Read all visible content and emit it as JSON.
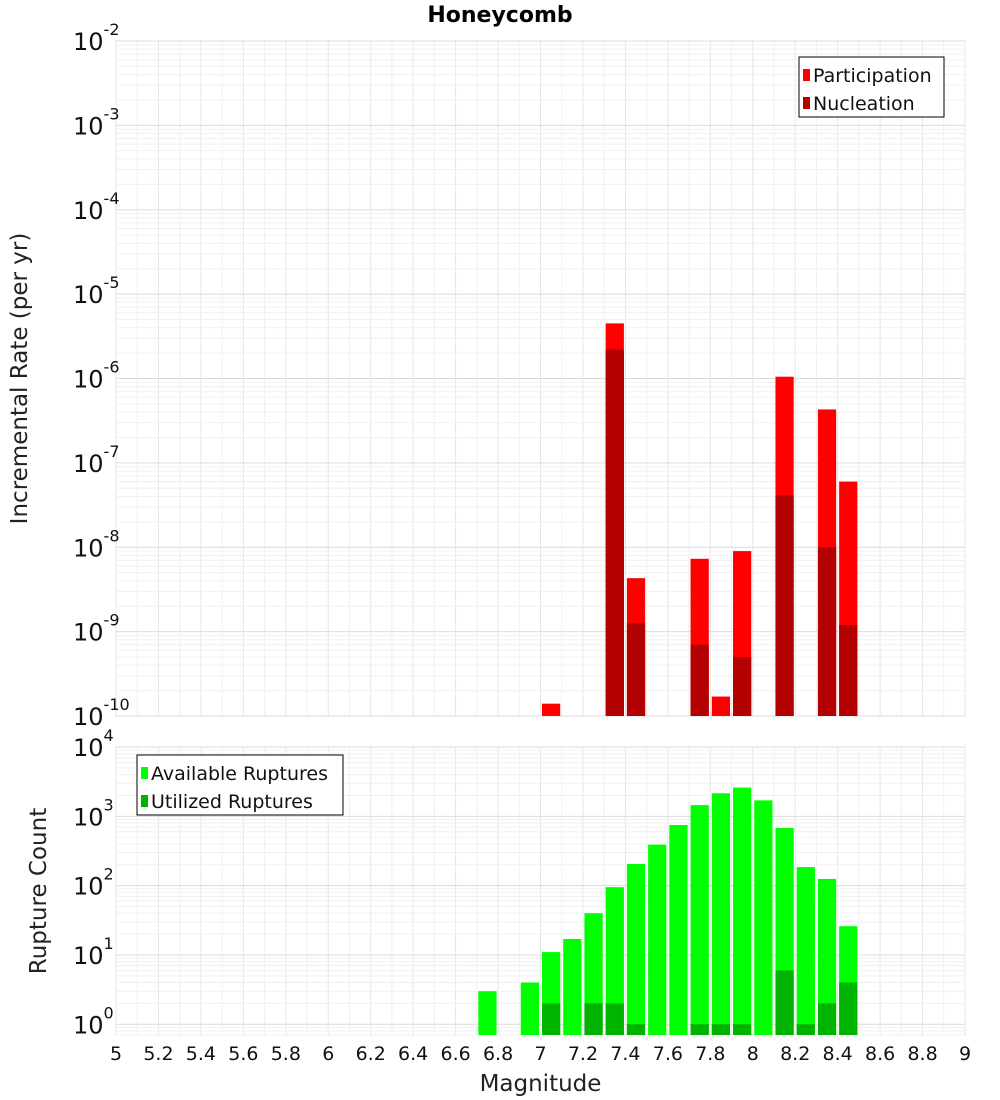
{
  "chart_data": [
    {
      "type": "bar",
      "title": "Honeycomb",
      "ylabel": "Incremental Rate (per yr)",
      "yscale": "log",
      "ylim": [
        1e-10,
        0.01
      ],
      "yticks_exp": [
        -10,
        -9,
        -8,
        -7,
        -6,
        -5,
        -4,
        -3,
        -2
      ],
      "grid": true,
      "legend_position": "top-right",
      "series": [
        {
          "name": "Participation",
          "color": "#ff0000",
          "points": [
            [
              7.05,
              1.4e-10
            ],
            [
              7.35,
              4.5e-06
            ],
            [
              7.45,
              4.3e-09
            ],
            [
              7.75,
              7.3e-09
            ],
            [
              7.85,
              1.7e-10
            ],
            [
              7.95,
              9e-09
            ],
            [
              8.15,
              1.05e-06
            ],
            [
              8.35,
              4.3e-07
            ],
            [
              8.45,
              6e-08
            ]
          ]
        },
        {
          "name": "Nucleation",
          "color": "#b30000",
          "points": [
            [
              7.35,
              2.2e-06
            ],
            [
              7.45,
              1.25e-09
            ],
            [
              7.75,
              7e-10
            ],
            [
              7.95,
              5e-10
            ],
            [
              8.15,
              4.1e-08
            ],
            [
              8.35,
              1e-08
            ],
            [
              8.45,
              1.2e-09
            ]
          ]
        }
      ]
    },
    {
      "type": "bar",
      "ylabel": "Rupture Count",
      "xlabel": "Magnitude",
      "yscale": "log",
      "ylim": [
        0.7,
        10000
      ],
      "yticks_exp": [
        0,
        1,
        2,
        3,
        4
      ],
      "xlim": [
        5,
        9
      ],
      "xticks": [
        "5",
        "5.2",
        "5.4",
        "5.6",
        "5.8",
        "6",
        "6.2",
        "6.4",
        "6.6",
        "6.8",
        "7",
        "7.2",
        "7.4",
        "7.6",
        "7.8",
        "8",
        "8.2",
        "8.4",
        "8.6",
        "8.8",
        "9"
      ],
      "grid": true,
      "legend_position": "top-left",
      "series": [
        {
          "name": "Available Ruptures",
          "color": "#00ff00",
          "points": [
            [
              6.75,
              3
            ],
            [
              6.95,
              4
            ],
            [
              7.05,
              11
            ],
            [
              7.15,
              17
            ],
            [
              7.25,
              40
            ],
            [
              7.35,
              95
            ],
            [
              7.45,
              205
            ],
            [
              7.55,
              390
            ],
            [
              7.65,
              750
            ],
            [
              7.75,
              1450
            ],
            [
              7.85,
              2150
            ],
            [
              7.95,
              2600
            ],
            [
              8.05,
              1700
            ],
            [
              8.15,
              680
            ],
            [
              8.25,
              185
            ],
            [
              8.35,
              125
            ],
            [
              8.45,
              26
            ]
          ]
        },
        {
          "name": "Utilized Ruptures",
          "color": "#00b300",
          "points": [
            [
              7.05,
              2
            ],
            [
              7.25,
              2
            ],
            [
              7.35,
              2
            ],
            [
              7.45,
              1
            ],
            [
              7.75,
              1
            ],
            [
              7.85,
              1
            ],
            [
              7.95,
              1
            ],
            [
              8.15,
              6
            ],
            [
              8.25,
              1
            ],
            [
              8.35,
              2
            ],
            [
              8.45,
              4
            ]
          ]
        }
      ]
    }
  ]
}
